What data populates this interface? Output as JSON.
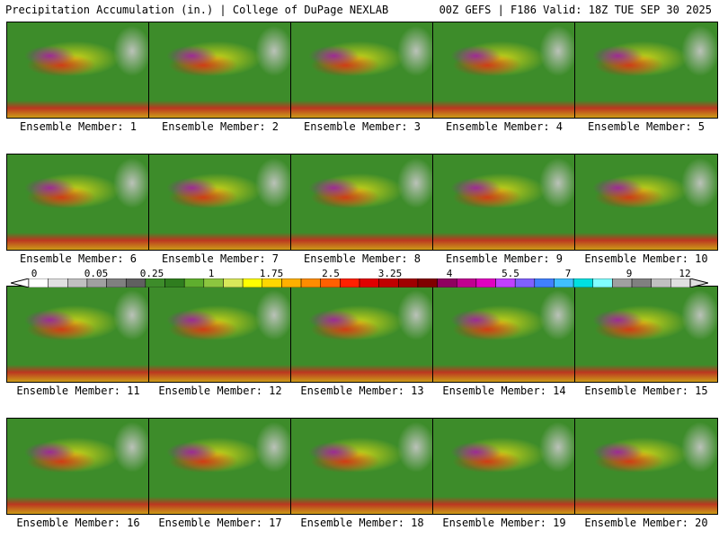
{
  "header": {
    "left": "Precipitation Accumulation (in.) | College of DuPage NEXLAB",
    "right": "00Z GEFS | F186 Valid: 18Z TUE SEP 30 2025"
  },
  "panels": [
    {
      "label": "Ensemble Member: 1"
    },
    {
      "label": "Ensemble Member: 2"
    },
    {
      "label": "Ensemble Member: 3"
    },
    {
      "label": "Ensemble Member: 4"
    },
    {
      "label": "Ensemble Member: 5"
    },
    {
      "label": "Ensemble Member: 6"
    },
    {
      "label": "Ensemble Member: 7"
    },
    {
      "label": "Ensemble Member: 8"
    },
    {
      "label": "Ensemble Member: 9"
    },
    {
      "label": "Ensemble Member: 10"
    },
    {
      "label": "Ensemble Member: 11"
    },
    {
      "label": "Ensemble Member: 12"
    },
    {
      "label": "Ensemble Member: 13"
    },
    {
      "label": "Ensemble Member: 14"
    },
    {
      "label": "Ensemble Member: 15"
    },
    {
      "label": "Ensemble Member: 16"
    },
    {
      "label": "Ensemble Member: 17"
    },
    {
      "label": "Ensemble Member: 18"
    },
    {
      "label": "Ensemble Member: 19"
    },
    {
      "label": "Ensemble Member: 20"
    }
  ],
  "colorbar": {
    "labels": [
      "0",
      "0.05",
      "0.25",
      "1",
      "1.75",
      "2.5",
      "3.25",
      "4",
      "5.5",
      "7",
      "9",
      "12"
    ],
    "colors": [
      "#ffffff",
      "#e0e0e0",
      "#c0c0c0",
      "#a0a0a0",
      "#808080",
      "#606060",
      "#3d8c2a",
      "#2f7d1f",
      "#5fae2e",
      "#8cc63f",
      "#d8e85a",
      "#ffff00",
      "#ffd700",
      "#ffb000",
      "#ff8c00",
      "#ff6000",
      "#ff2000",
      "#e00000",
      "#c00000",
      "#a00000",
      "#800000",
      "#900060",
      "#c00090",
      "#e000c0",
      "#c040ff",
      "#8060ff",
      "#4080ff",
      "#40c0ff",
      "#00e0e0",
      "#80ffff",
      "#a0a0a0",
      "#808080",
      "#c0c0c0",
      "#e0e0e0"
    ]
  }
}
